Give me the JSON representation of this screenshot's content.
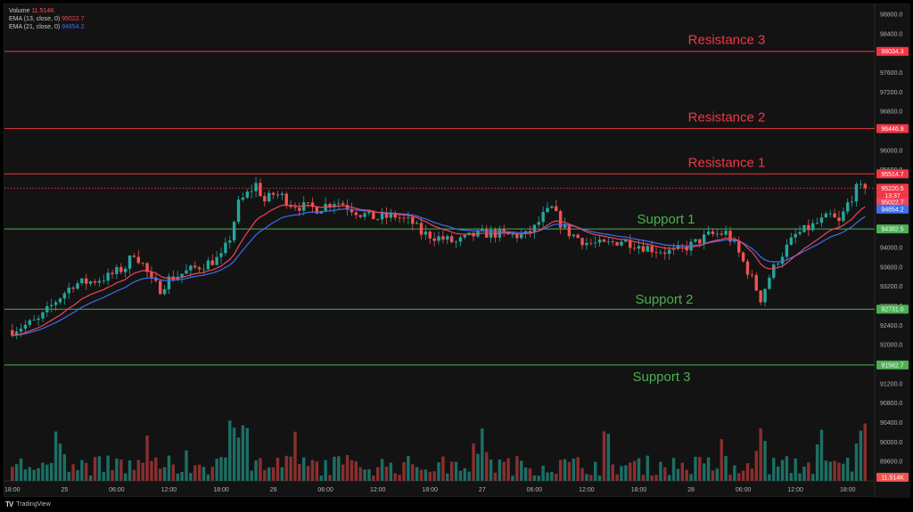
{
  "legend": {
    "volume_label": "Volume",
    "volume_value": "11.514K",
    "ema13_label": "EMA (13, close, 0)",
    "ema13_value": "95022.7",
    "ema21_label": "EMA (21, close, 0)",
    "ema21_value": "94854.2"
  },
  "footer": {
    "logo": "TV",
    "brand": "TradingView"
  },
  "colors": {
    "bull": "#26a69a",
    "bear": "#ef5350",
    "resistance": "#f23645",
    "support": "#4caf50",
    "ema13": "#f0445a",
    "ema21": "#3d6ef0",
    "bull_volume": "#1c6f65",
    "bear_volume": "#8a2f2e"
  },
  "chart_data": {
    "type": "candlestick",
    "y_range": [
      89200,
      99000
    ],
    "y_ticks": [
      "89600.0",
      "90000.0",
      "90400.0",
      "90800.0",
      "91200.0",
      "91600.0",
      "92000.0",
      "92400.0",
      "92800.0",
      "93200.0",
      "93600.0",
      "94000.0",
      "94400.0",
      "94800.0",
      "95200.0",
      "95600.0",
      "96000.0",
      "96400.0",
      "96800.0",
      "97200.0",
      "97600.0",
      "98000.0",
      "98400.0",
      "98800.0"
    ],
    "x_ticks": [
      {
        "label": "18:00",
        "t": 0
      },
      {
        "label": "25",
        "t": 6
      },
      {
        "label": "06:00",
        "t": 12
      },
      {
        "label": "12:00",
        "t": 18
      },
      {
        "label": "18:00",
        "t": 24
      },
      {
        "label": "26",
        "t": 30
      },
      {
        "label": "06:00",
        "t": 36
      },
      {
        "label": "12:00",
        "t": 42
      },
      {
        "label": "18:00",
        "t": 48
      },
      {
        "label": "27",
        "t": 54
      },
      {
        "label": "06:00",
        "t": 60
      },
      {
        "label": "12:00",
        "t": 66
      },
      {
        "label": "18:00",
        "t": 72
      },
      {
        "label": "28",
        "t": 78
      },
      {
        "label": "06:00",
        "t": 84
      },
      {
        "label": "12:00",
        "t": 90
      },
      {
        "label": "18:00",
        "t": 96
      }
    ],
    "x_range": [
      -0.9,
      99.1
    ],
    "levels": [
      {
        "name": "Resistance 3",
        "value": 98034.3,
        "label": "98034.3",
        "kind": "resistance"
      },
      {
        "name": "Resistance 2",
        "value": 96446.9,
        "label": "96446.9",
        "kind": "resistance"
      },
      {
        "name": "Resistance 1",
        "value": 95514.7,
        "label": "95514.7",
        "kind": "resistance"
      },
      {
        "name": "Support 1",
        "value": 94382.5,
        "label": "94382.5",
        "kind": "support"
      },
      {
        "name": "Support 2",
        "value": 92731.0,
        "label": "92731.0",
        "kind": "support"
      },
      {
        "name": "Support 3",
        "value": 91582.7,
        "label": "91582.7",
        "kind": "support"
      }
    ],
    "price_tags": [
      {
        "label": "95220.5",
        "value": 95220.5,
        "color": "#f23645"
      },
      {
        "label": "13:37",
        "value": 95070,
        "color": "#f23645"
      },
      {
        "label": "95022.7",
        "value": 94930,
        "color": "#f0445a"
      },
      {
        "label": "94854.2",
        "value": 94790,
        "color": "#3d6ef0"
      },
      {
        "label": "11.514K",
        "value": 89280,
        "color": "#ef5350"
      }
    ],
    "current_price": 95220.5,
    "close_path": [
      [
        0,
        92300
      ],
      [
        3,
        92500
      ],
      [
        5,
        92900
      ],
      [
        7,
        93250
      ],
      [
        9,
        93300
      ],
      [
        11,
        93400
      ],
      [
        13,
        93600
      ],
      [
        14,
        93900
      ],
      [
        15,
        93650
      ],
      [
        16,
        93300
      ],
      [
        17,
        93150
      ],
      [
        18,
        93350
      ],
      [
        20,
        93500
      ],
      [
        22,
        93650
      ],
      [
        24,
        93800
      ],
      [
        25,
        94200
      ],
      [
        26,
        94900
      ],
      [
        27,
        95100
      ],
      [
        28,
        95300
      ],
      [
        29,
        94950
      ],
      [
        30,
        95100
      ],
      [
        31,
        95050
      ],
      [
        32,
        94900
      ],
      [
        33,
        94850
      ],
      [
        35,
        94800
      ],
      [
        37,
        94950
      ],
      [
        38,
        94900
      ],
      [
        40,
        94700
      ],
      [
        42,
        94600
      ],
      [
        44,
        94650
      ],
      [
        46,
        94500
      ],
      [
        47,
        94300
      ],
      [
        49,
        94200
      ],
      [
        51,
        94100
      ],
      [
        53,
        94250
      ],
      [
        55,
        94300
      ],
      [
        57,
        94250
      ],
      [
        59,
        94250
      ],
      [
        60,
        94400
      ],
      [
        61,
        94650
      ],
      [
        62,
        94800
      ],
      [
        63,
        94500
      ],
      [
        64,
        94300
      ],
      [
        66,
        94100
      ],
      [
        68,
        94050
      ],
      [
        70,
        94150
      ],
      [
        72,
        94050
      ],
      [
        74,
        93950
      ],
      [
        76,
        93900
      ],
      [
        78,
        94050
      ],
      [
        80,
        94250
      ],
      [
        82,
        94300
      ],
      [
        83,
        94050
      ],
      [
        84,
        93700
      ],
      [
        85,
        93350
      ],
      [
        86,
        92950
      ],
      [
        87,
        93400
      ],
      [
        88,
        93750
      ],
      [
        89,
        94000
      ],
      [
        90,
        94250
      ],
      [
        92,
        94450
      ],
      [
        94,
        94650
      ],
      [
        95,
        94500
      ],
      [
        96,
        94900
      ],
      [
        97,
        95200
      ],
      [
        98,
        95220
      ]
    ],
    "volume_range": [
      0,
      12000
    ],
    "volume_scale_note": ""
  },
  "annotations": [
    {
      "text": "Resistance 3",
      "ref": "Resistance 3"
    },
    {
      "text": "Resistance 2",
      "ref": "Resistance 2"
    },
    {
      "text": "Resistance 1",
      "ref": "Resistance 1"
    },
    {
      "text": "Support 1",
      "ref": "Support 1"
    },
    {
      "text": "Support 2",
      "ref": "Support 2"
    },
    {
      "text": "Support 3",
      "ref": "Support 3"
    }
  ]
}
